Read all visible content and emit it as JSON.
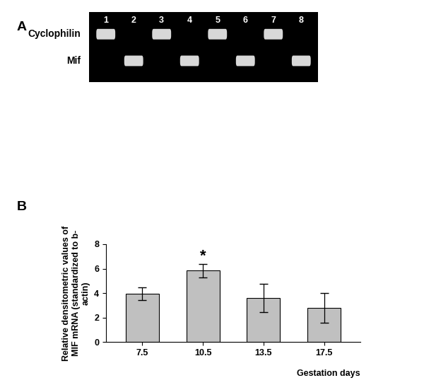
{
  "panel_labels": [
    "A",
    "B"
  ],
  "gel": {
    "lanes": [
      1,
      2,
      3,
      4,
      5,
      6,
      7,
      8
    ],
    "rows": [
      {
        "label": "Cyclophilin",
        "lanes": [
          1,
          3,
          5,
          7
        ]
      },
      {
        "label": "Mif",
        "lanes": [
          2,
          4,
          6,
          8
        ]
      }
    ]
  },
  "chart_data": {
    "type": "bar",
    "categories": [
      "7.5",
      "10.5",
      "13.5",
      "17.5"
    ],
    "values": [
      3.95,
      5.85,
      3.6,
      2.8
    ],
    "errors": [
      0.5,
      0.55,
      1.15,
      1.2
    ],
    "color": "#c0c0c0",
    "x_label": "Gestation days",
    "y_label": "Relative densitometric values of MIF mRNA (standardized to b- actin)",
    "ylim": [
      0,
      8
    ],
    "yticks": [
      0,
      2,
      4,
      6,
      8
    ],
    "significance": [
      {
        "category": "10.5",
        "text": "*"
      }
    ],
    "grid": false
  }
}
